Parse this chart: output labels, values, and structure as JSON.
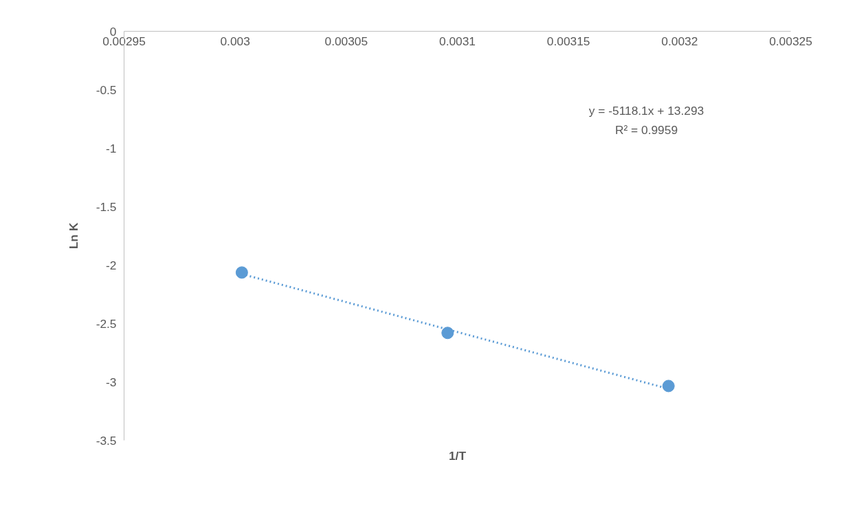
{
  "chart_data": {
    "type": "scatter",
    "xlabel": "1/T",
    "ylabel": "Ln K",
    "xlim": [
      0.00295,
      0.00325
    ],
    "xticks": [
      0.00295,
      0.003,
      0.00305,
      0.0031,
      0.00315,
      0.0032,
      0.00325
    ],
    "ylim": [
      -3.5,
      0
    ],
    "yticks": [
      0,
      -0.5,
      -1,
      -1.5,
      -2,
      -2.5,
      -3,
      -3.5
    ],
    "series": [
      {
        "color": "#5b9bd5",
        "marker": "circle",
        "x": [
          0.003003,
          0.0030956,
          0.003195
        ],
        "values": [
          -2.064,
          -2.581,
          -3.035
        ]
      },
      {
        "type": "line",
        "color": "#5b9bd5",
        "line_style": "dotted",
        "x": [
          0.003003,
          0.003195
        ],
        "values": [
          -2.077,
          -3.059
        ]
      }
    ],
    "annotations": [
      "y = -5118.1x + 13.293",
      "R² = 0.9959"
    ],
    "grid": false
  }
}
